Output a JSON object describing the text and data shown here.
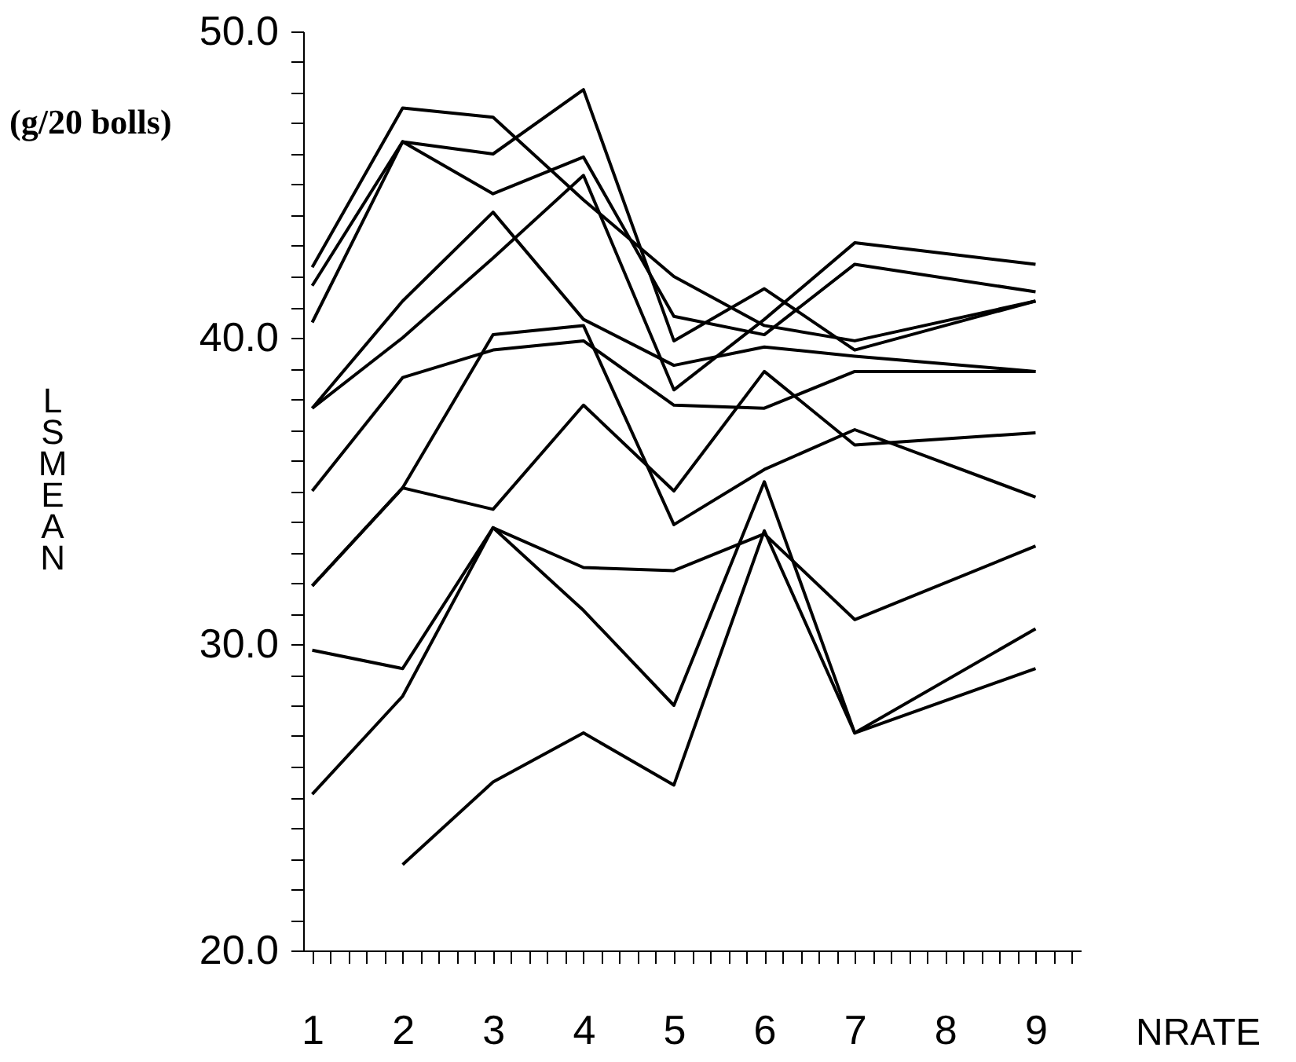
{
  "chart_data": {
    "type": "line",
    "xlabel": "NRATE",
    "ylabel": "LSMEAN",
    "annotations": [
      "(g/20 bolls)"
    ],
    "xlim": [
      0.9,
      9.5
    ],
    "xticks": [
      1,
      {
        "value": 1.2,
        "label": null
      },
      {
        "value": 1.4,
        "label": null
      },
      {
        "value": 1.6,
        "label": null
      },
      {
        "value": 1.8,
        "label": null
      },
      2,
      {
        "value": 2.2,
        "label": null
      },
      {
        "value": 2.4,
        "label": null
      },
      {
        "value": 2.6,
        "label": null
      },
      {
        "value": 2.8,
        "label": null
      },
      3,
      {
        "value": 3.2,
        "label": null
      },
      {
        "value": 3.4,
        "label": null
      },
      {
        "value": 3.6,
        "label": null
      },
      {
        "value": 3.8,
        "label": null
      },
      4,
      {
        "value": 4.2,
        "label": null
      },
      {
        "value": 4.4,
        "label": null
      },
      {
        "value": 4.6,
        "label": null
      },
      {
        "value": 4.8,
        "label": null
      },
      5,
      {
        "value": 5.2,
        "label": null
      },
      {
        "value": 5.4,
        "label": null
      },
      {
        "value": 5.6,
        "label": null
      },
      {
        "value": 5.8,
        "label": null
      },
      6,
      {
        "value": 6.2,
        "label": null
      },
      {
        "value": 6.4,
        "label": null
      },
      {
        "value": 6.6,
        "label": null
      },
      {
        "value": 6.8,
        "label": null
      },
      7,
      {
        "value": 7.2,
        "label": null
      },
      {
        "value": 7.4,
        "label": null
      },
      {
        "value": 7.6,
        "label": null
      },
      {
        "value": 7.8,
        "label": null
      },
      8,
      {
        "value": 8.2,
        "label": null
      },
      {
        "value": 8.4,
        "label": null
      },
      {
        "value": 8.6,
        "label": null
      },
      {
        "value": 8.8,
        "label": null
      },
      9,
      {
        "value": 9.2,
        "label": null
      },
      {
        "value": 9.4,
        "label": null
      }
    ],
    "ylim": [
      20,
      50
    ],
    "yticks": [
      {
        "value": 20,
        "label": "20.0"
      },
      {
        "value": 21,
        "label": null
      },
      {
        "value": 22,
        "label": null
      },
      {
        "value": 23,
        "label": null
      },
      {
        "value": 24,
        "label": null
      },
      {
        "value": 25,
        "label": null
      },
      {
        "value": 26,
        "label": null
      },
      {
        "value": 27,
        "label": null
      },
      {
        "value": 28,
        "label": null
      },
      {
        "value": 29,
        "label": null
      },
      {
        "value": 30,
        "label": "30.0"
      },
      {
        "value": 31,
        "label": null
      },
      {
        "value": 32,
        "label": null
      },
      {
        "value": 33,
        "label": null
      },
      {
        "value": 34,
        "label": null
      },
      {
        "value": 35,
        "label": null
      },
      {
        "value": 36,
        "label": null
      },
      {
        "value": 37,
        "label": null
      },
      {
        "value": 38,
        "label": null
      },
      {
        "value": 39,
        "label": null
      },
      {
        "value": 40,
        "label": "40.0"
      },
      {
        "value": 41,
        "label": null
      },
      {
        "value": 42,
        "label": null
      },
      {
        "value": 43,
        "label": null
      },
      {
        "value": 44,
        "label": null
      },
      {
        "value": 45,
        "label": null
      },
      {
        "value": 46,
        "label": null
      },
      {
        "value": 47,
        "label": null
      },
      {
        "value": 48,
        "label": null
      },
      {
        "value": 49,
        "label": null
      },
      {
        "value": 50,
        "label": "50.0"
      }
    ],
    "grid": false,
    "marker": "none",
    "line_style": "solid",
    "series": [
      {
        "color": "#000000",
        "x": [
          1,
          2,
          3,
          4,
          5,
          6,
          7,
          9
        ],
        "values": [
          42.3,
          47.5,
          47.2,
          44.5,
          42.0,
          40.4,
          39.9,
          41.2
        ]
      },
      {
        "color": "#000000",
        "x": [
          1,
          2,
          3,
          4,
          5,
          6,
          7,
          9
        ],
        "values": [
          41.7,
          46.4,
          46.0,
          48.1,
          39.9,
          41.6,
          39.6,
          41.2
        ]
      },
      {
        "color": "#000000",
        "x": [
          1,
          2,
          3,
          4,
          5,
          6,
          7,
          9
        ],
        "values": [
          40.5,
          46.4,
          44.7,
          45.9,
          40.7,
          40.1,
          42.4,
          41.5
        ]
      },
      {
        "color": "#000000",
        "x": [
          1,
          2,
          3,
          4,
          5,
          6,
          7,
          9
        ],
        "values": [
          37.7,
          41.2,
          44.1,
          40.6,
          39.1,
          39.7,
          39.4,
          38.9
        ]
      },
      {
        "color": "#000000",
        "x": [
          1,
          2,
          3,
          4,
          5,
          6,
          7,
          9
        ],
        "values": [
          37.7,
          40.0,
          42.6,
          45.3,
          38.3,
          40.6,
          43.1,
          42.4
        ]
      },
      {
        "color": "#000000",
        "x": [
          1,
          2,
          3,
          4,
          5,
          6,
          7,
          9
        ],
        "values": [
          35.0,
          38.7,
          39.6,
          39.9,
          37.8,
          37.7,
          38.9,
          38.9
        ]
      },
      {
        "color": "#000000",
        "x": [
          1,
          2,
          3,
          4,
          5,
          6,
          7,
          9
        ],
        "values": [
          31.9,
          35.1,
          40.1,
          40.4,
          33.9,
          35.7,
          37.0,
          34.8
        ]
      },
      {
        "color": "#000000",
        "x": [
          1,
          2,
          3,
          4,
          5,
          6,
          7,
          9
        ],
        "values": [
          31.9,
          35.1,
          34.4,
          37.8,
          35.0,
          38.9,
          36.5,
          36.9
        ]
      },
      {
        "color": "#000000",
        "x": [
          1,
          2,
          3,
          4,
          5,
          6,
          7,
          9
        ],
        "values": [
          29.8,
          29.2,
          33.8,
          32.5,
          32.4,
          33.6,
          30.8,
          33.2
        ]
      },
      {
        "color": "#000000",
        "x": [
          1,
          2,
          3,
          4,
          5,
          6,
          7,
          9
        ],
        "values": [
          25.1,
          28.3,
          33.8,
          31.1,
          28.0,
          35.3,
          27.1,
          30.5
        ]
      },
      {
        "color": "#000000",
        "x": [
          2,
          3,
          4,
          5,
          6,
          7,
          9
        ],
        "values": [
          22.8,
          25.5,
          27.1,
          25.4,
          33.7,
          27.1,
          29.2
        ]
      }
    ]
  }
}
